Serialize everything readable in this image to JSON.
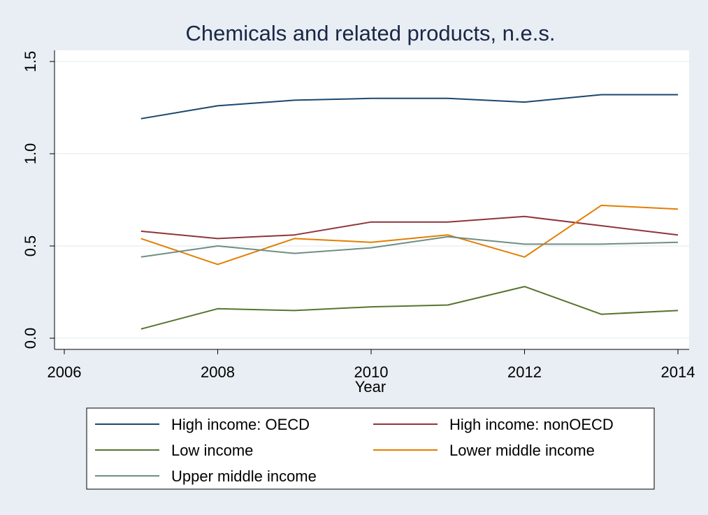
{
  "chart_data": {
    "type": "line",
    "title": "Chemicals and related products, n.e.s.",
    "xlabel": "Year",
    "ylabel": "",
    "xlim": [
      2006,
      2014
    ],
    "ylim": [
      0,
      1.5
    ],
    "xticks": [
      2006,
      2008,
      2010,
      2012,
      2014
    ],
    "xtick_labels": [
      "2006",
      "2008",
      "2010",
      "2012",
      "2014"
    ],
    "yticks": [
      0,
      0.5,
      1.0,
      1.5
    ],
    "ytick_labels": [
      "0.0",
      "0.5",
      "1.0",
      "1.5"
    ],
    "grid": "horizontal",
    "legend_position": "bottom",
    "x": [
      2007,
      2008,
      2009,
      2010,
      2011,
      2012,
      2013,
      2014
    ],
    "series": [
      {
        "name": "High income: OECD",
        "color": "#1a476f",
        "values": [
          1.19,
          1.26,
          1.29,
          1.3,
          1.3,
          1.28,
          1.32,
          1.32
        ]
      },
      {
        "name": "High income: nonOECD",
        "color": "#90353b",
        "values": [
          0.58,
          0.54,
          0.56,
          0.63,
          0.63,
          0.66,
          0.61,
          0.56
        ]
      },
      {
        "name": "Low income",
        "color": "#55752f",
        "values": [
          0.05,
          0.16,
          0.15,
          0.17,
          0.18,
          0.28,
          0.13,
          0.15
        ]
      },
      {
        "name": "Lower middle income",
        "color": "#e37e00",
        "values": [
          0.54,
          0.4,
          0.54,
          0.52,
          0.56,
          0.44,
          0.72,
          0.7
        ]
      },
      {
        "name": "Upper middle income",
        "color": "#6e8e84",
        "values": [
          0.44,
          0.5,
          0.46,
          0.49,
          0.55,
          0.51,
          0.51,
          0.52
        ]
      }
    ]
  }
}
